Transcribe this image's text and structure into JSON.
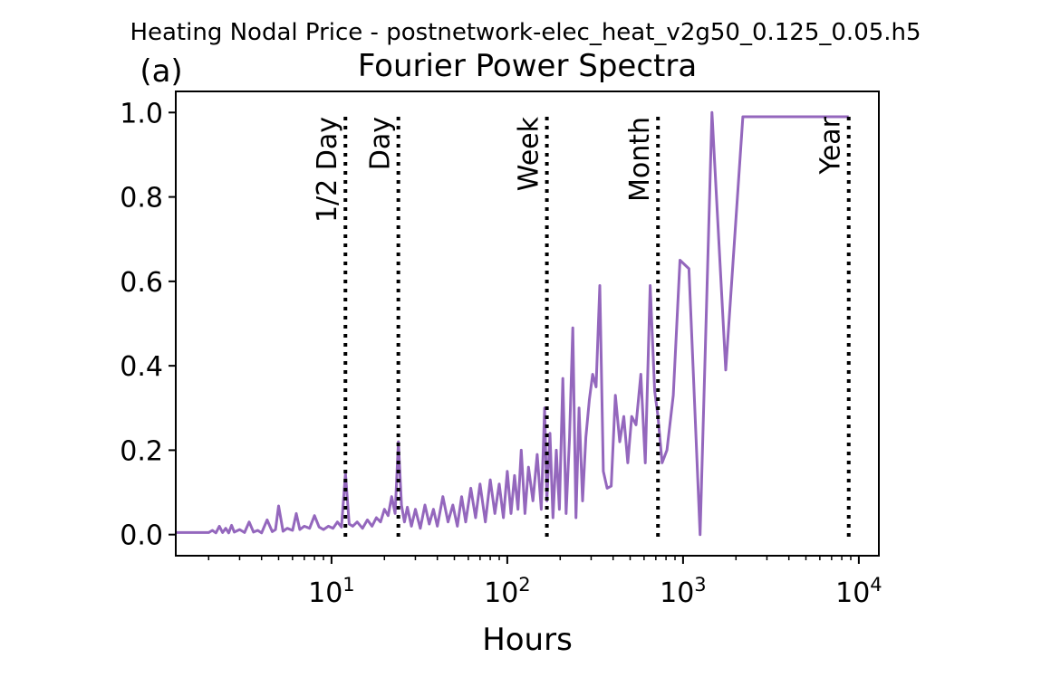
{
  "figure": {
    "suptitle": "Heating Nodal Price - postnetwork-elec_heat_v2g50_0.125_0.05.h5",
    "panel_label": "(a)"
  },
  "chart_data": {
    "type": "line",
    "title": "Fourier Power Spectra",
    "xlabel": "Hours",
    "ylabel": "",
    "xscale": "log",
    "xlim": [
      1.3,
      13000
    ],
    "ylim": [
      -0.05,
      1.05
    ],
    "x_ticks": [
      {
        "value": 10,
        "label": "10",
        "exp": "1"
      },
      {
        "value": 100,
        "label": "10",
        "exp": "2"
      },
      {
        "value": 1000,
        "label": "10",
        "exp": "3"
      },
      {
        "value": 10000,
        "label": "10",
        "exp": "4"
      }
    ],
    "y_ticks": [
      {
        "value": 0.0,
        "label": "0.0"
      },
      {
        "value": 0.2,
        "label": "0.2"
      },
      {
        "value": 0.4,
        "label": "0.4"
      },
      {
        "value": 0.6,
        "label": "0.6"
      },
      {
        "value": 0.8,
        "label": "0.8"
      },
      {
        "value": 1.0,
        "label": "1.0"
      }
    ],
    "grid": false,
    "line_color": "#9467bd",
    "marker_color": "#000000",
    "markers": [
      {
        "label": "1/2 Day",
        "x": 12
      },
      {
        "label": "Day",
        "x": 24
      },
      {
        "label": "Week",
        "x": 168
      },
      {
        "label": "Month",
        "x": 720
      },
      {
        "label": "Year",
        "x": 8760
      }
    ],
    "series": [
      {
        "x": [
          1.3,
          2.0,
          2.1,
          2.2,
          2.3,
          2.4,
          2.5,
          2.6,
          2.7,
          2.8,
          3.0,
          3.2,
          3.4,
          3.6,
          3.8,
          4.0,
          4.3,
          4.6,
          4.8,
          5.0,
          5.3,
          5.6,
          6.0,
          6.3,
          6.6,
          7.0,
          7.5,
          8.0,
          8.5,
          9.0,
          9.6,
          10.2,
          10.8,
          11.4,
          12.0,
          12.6,
          13.2,
          14.0,
          15.0,
          16.0,
          17.0,
          18.0,
          19.0,
          20.0,
          21.0,
          22.0,
          23.0,
          24.0,
          25.0,
          26.0,
          27.0,
          28.5,
          30.0,
          32.0,
          34.0,
          36.0,
          38.0,
          40.0,
          43.0,
          46.0,
          49.0,
          52.0,
          55.0,
          58.0,
          62.0,
          66.0,
          70.0,
          75.0,
          80.0,
          85.0,
          90.0,
          95.0,
          100.0,
          105.0,
          110.0,
          115.0,
          120.0,
          126.0,
          132.0,
          140.0,
          148.0,
          156.0,
          163.0,
          168.0,
          175.0,
          182.0,
          190.0,
          198.0,
          207.0,
          216.0,
          226.0,
          236.0,
          246.0,
          256.0,
          268.0,
          280.0,
          293.0,
          306.0,
          320.0,
          336.0,
          352.0,
          370.0,
          390.0,
          412.0,
          436.0,
          460.0,
          485.0,
          510.0,
          540.0,
          575.0,
          610.0,
          650.0,
          690.0,
          720.0,
          760.0,
          810.0,
          880.0,
          960.0,
          1080.0,
          1250.0,
          1460.0,
          1750.0,
          2190.0,
          2920.0,
          4380.0,
          8760.0
        ],
        "values": [
          0.005,
          0.005,
          0.01,
          0.004,
          0.02,
          0.005,
          0.015,
          0.004,
          0.022,
          0.006,
          0.012,
          0.005,
          0.03,
          0.006,
          0.01,
          0.004,
          0.035,
          0.007,
          0.012,
          0.068,
          0.008,
          0.015,
          0.01,
          0.05,
          0.012,
          0.02,
          0.015,
          0.045,
          0.018,
          0.012,
          0.02,
          0.015,
          0.03,
          0.018,
          0.145,
          0.025,
          0.02,
          0.03,
          0.015,
          0.035,
          0.02,
          0.04,
          0.03,
          0.06,
          0.045,
          0.09,
          0.05,
          0.22,
          0.07,
          0.03,
          0.065,
          0.02,
          0.06,
          0.015,
          0.07,
          0.025,
          0.06,
          0.02,
          0.09,
          0.03,
          0.07,
          0.02,
          0.09,
          0.03,
          0.11,
          0.04,
          0.12,
          0.03,
          0.13,
          0.05,
          0.12,
          0.04,
          0.15,
          0.05,
          0.14,
          0.06,
          0.2,
          0.05,
          0.16,
          0.08,
          0.19,
          0.06,
          0.3,
          0.08,
          0.24,
          0.04,
          0.2,
          0.06,
          0.37,
          0.05,
          0.23,
          0.49,
          0.04,
          0.3,
          0.08,
          0.23,
          0.32,
          0.38,
          0.35,
          0.59,
          0.15,
          0.11,
          0.115,
          0.33,
          0.22,
          0.28,
          0.17,
          0.28,
          0.26,
          0.38,
          0.17,
          0.59,
          0.34,
          0.28,
          0.17,
          0.2,
          0.33,
          0.65,
          0.63,
          0.0,
          1.0,
          0.39,
          0.99,
          0.99,
          0.99,
          0.99
        ]
      }
    ]
  }
}
